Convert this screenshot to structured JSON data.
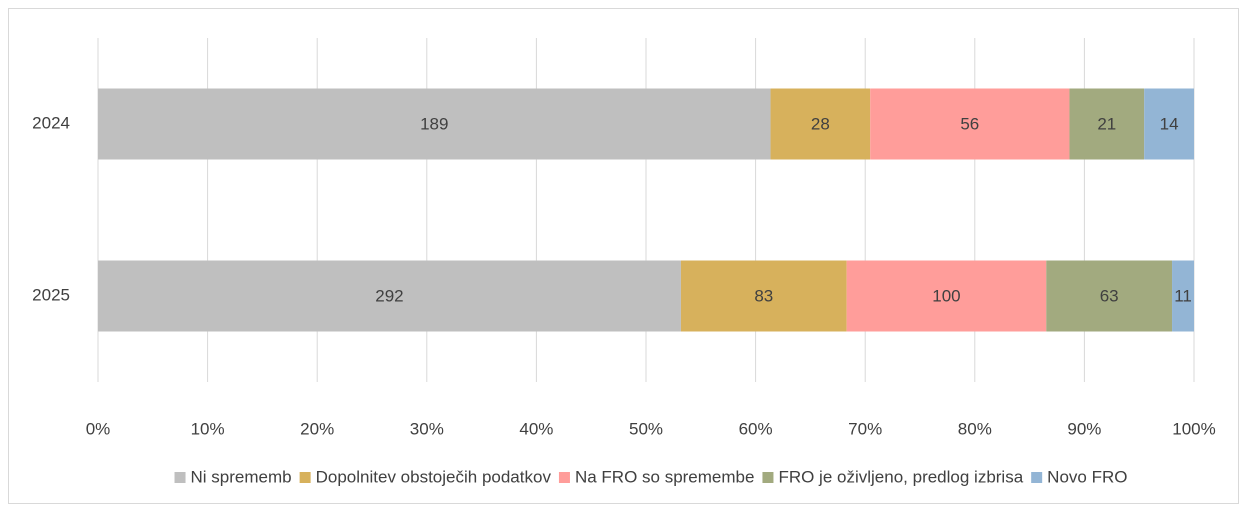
{
  "chart_data": {
    "type": "bar",
    "orientation": "horizontal",
    "stacking": "percent",
    "categories": [
      "2024",
      "2025"
    ],
    "series": [
      {
        "name": "Ni sprememb",
        "color": "#bfbfbf",
        "values": [
          189,
          292
        ]
      },
      {
        "name": "Dopolnitev obstoječih podatkov",
        "color": "#d7b15c",
        "values": [
          28,
          83
        ]
      },
      {
        "name": "Na FRO so spremembe",
        "color": "#ff9d9a",
        "values": [
          56,
          100
        ]
      },
      {
        "name": "FRO je oživljeno, predlog izbrisa",
        "color": "#a2aa7f",
        "values": [
          21,
          63
        ]
      },
      {
        "name": "Novo FRO",
        "color": "#93b5d5",
        "values": [
          14,
          11
        ]
      }
    ],
    "xlim": [
      0,
      100
    ],
    "xticks": [
      {
        "value": 0,
        "label": "0%"
      },
      {
        "value": 10,
        "label": "10%"
      },
      {
        "value": 20,
        "label": "20%"
      },
      {
        "value": 30,
        "label": "30%"
      },
      {
        "value": 40,
        "label": "40%"
      },
      {
        "value": 50,
        "label": "50%"
      },
      {
        "value": 60,
        "label": "60%"
      },
      {
        "value": 70,
        "label": "70%"
      },
      {
        "value": 80,
        "label": "80%"
      },
      {
        "value": 90,
        "label": "90%"
      },
      {
        "value": 100,
        "label": "100%"
      }
    ],
    "grid": true,
    "legend": "bottom"
  }
}
